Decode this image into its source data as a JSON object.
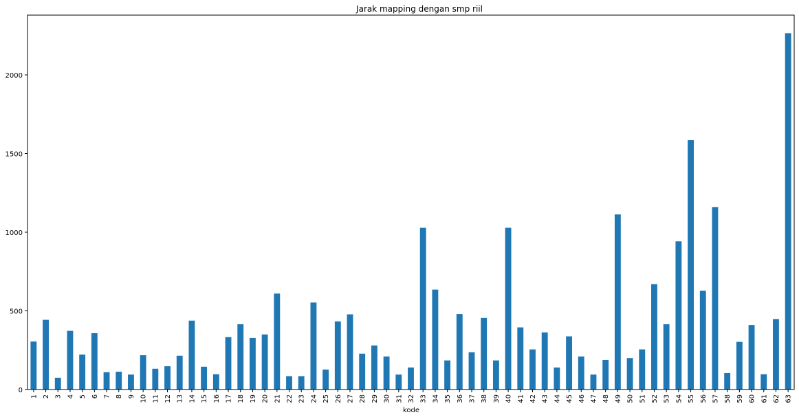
{
  "chart_data": {
    "type": "bar",
    "title": "Jarak mapping dengan smp riil",
    "xlabel": "kode",
    "ylabel": "",
    "ylim": [
      0,
      2380
    ],
    "yticks": [
      0,
      500,
      1000,
      1500,
      2000
    ],
    "ytick_labels": [
      "0",
      "500",
      "1000",
      "1500",
      "2000"
    ],
    "grid": false,
    "legend": "none",
    "bar_color": "#1f77b4",
    "categories": [
      "1",
      "2",
      "3",
      "4",
      "5",
      "6",
      "7",
      "8",
      "9",
      "10",
      "11",
      "12",
      "13",
      "14",
      "15",
      "16",
      "17",
      "18",
      "19",
      "20",
      "21",
      "22",
      "23",
      "24",
      "25",
      "26",
      "27",
      "28",
      "29",
      "30",
      "31",
      "32",
      "33",
      "34",
      "35",
      "36",
      "37",
      "38",
      "39",
      "40",
      "41",
      "42",
      "43",
      "44",
      "45",
      "46",
      "47",
      "48",
      "49",
      "50",
      "51",
      "52",
      "53",
      "54",
      "55",
      "56",
      "57",
      "58",
      "59",
      "60",
      "61",
      "62",
      "63"
    ],
    "values": [
      305,
      443,
      75,
      373,
      222,
      358,
      110,
      113,
      95,
      218,
      132,
      148,
      215,
      438,
      145,
      97,
      333,
      415,
      328,
      350,
      610,
      85,
      85,
      553,
      127,
      433,
      478,
      228,
      280,
      210,
      95,
      140,
      1028,
      635,
      185,
      480,
      237,
      455,
      185,
      1028,
      395,
      255,
      363,
      140,
      338,
      210,
      95,
      188,
      1113,
      200,
      255,
      670,
      415,
      942,
      1585,
      628,
      1160,
      105,
      303,
      410,
      97,
      448,
      2265
    ]
  }
}
